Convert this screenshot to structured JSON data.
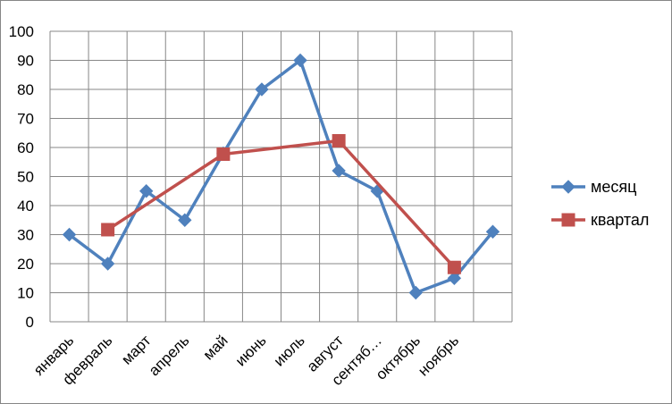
{
  "chart_data": {
    "type": "line",
    "categories": [
      "январь",
      "февраль",
      "март",
      "апрель",
      "май",
      "июнь",
      "июль",
      "август",
      "сентяб…",
      "октябрь",
      "ноябрь",
      ""
    ],
    "series": [
      {
        "name": "месяц",
        "color": "#4F81BD",
        "marker": "diamond",
        "points": [
          {
            "x": 0.5,
            "y": 30
          },
          {
            "x": 1.5,
            "y": 20
          },
          {
            "x": 2.5,
            "y": 45
          },
          {
            "x": 3.5,
            "y": 35
          },
          {
            "x": 4.5,
            "y": 58
          },
          {
            "x": 5.5,
            "y": 80
          },
          {
            "x": 6.5,
            "y": 90
          },
          {
            "x": 7.5,
            "y": 52
          },
          {
            "x": 8.5,
            "y": 45
          },
          {
            "x": 9.5,
            "y": 10
          },
          {
            "x": 10.5,
            "y": 15
          },
          {
            "x": 11.5,
            "y": 31
          }
        ]
      },
      {
        "name": "квартал",
        "color": "#C0504D",
        "marker": "square",
        "points": [
          {
            "x": 1.5,
            "y": 31.7
          },
          {
            "x": 4.5,
            "y": 57.7
          },
          {
            "x": 7.5,
            "y": 62.3
          },
          {
            "x": 10.5,
            "y": 18.7
          }
        ]
      }
    ],
    "y_ticks": [
      "0",
      "10",
      "20",
      "30",
      "40",
      "50",
      "60",
      "70",
      "80",
      "90",
      "100"
    ],
    "ylim": [
      0,
      100
    ],
    "grid": true,
    "legend": "right"
  }
}
